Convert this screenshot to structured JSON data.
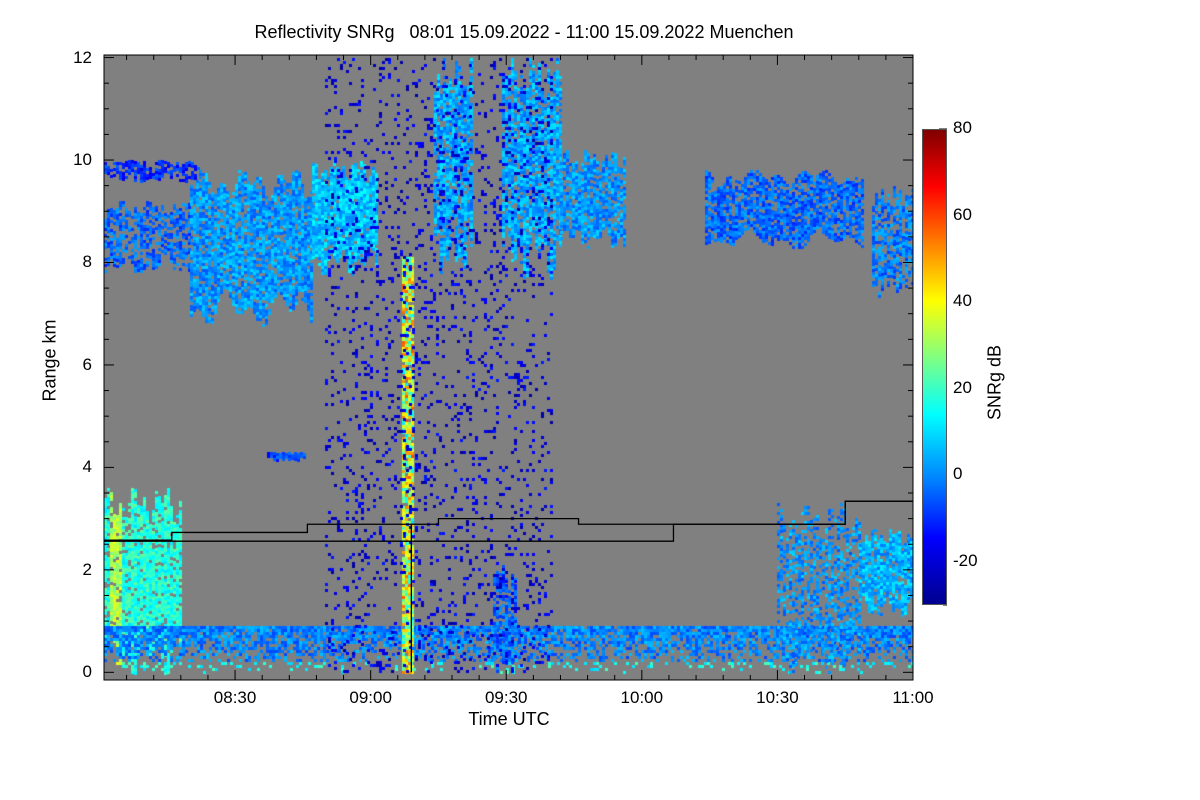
{
  "chart_data": {
    "type": "heatmap",
    "title": "Reflectivity SNRg   08:01 15.09.2022 - 11:00 15.09.2022 Muenchen",
    "xlabel": "Time UTC",
    "ylabel": "Range km",
    "xlim": [
      "08:01",
      "11:00"
    ],
    "ylim": [
      -0.15,
      12.05
    ],
    "x_ticks": [
      "08:30",
      "09:00",
      "09:30",
      "10:00",
      "10:30",
      "11:00"
    ],
    "y_ticks": [
      0,
      2,
      4,
      6,
      8,
      10,
      12
    ],
    "colorbar": {
      "label": "SNRg dB",
      "range": [
        -30,
        80
      ],
      "ticks": [
        80,
        60,
        40,
        20,
        0,
        -20
      ],
      "colormap": "jet"
    },
    "background_color": "#808080",
    "features": [
      {
        "name": "cirrus-west-upper",
        "t": [
          "08:01",
          "08:22"
        ],
        "range_km": [
          9.6,
          10.0
        ],
        "snr_db": -12,
        "coverage": 0.7
      },
      {
        "name": "cirrus-west",
        "t": [
          "08:01",
          "08:20"
        ],
        "range_km": [
          7.8,
          9.2
        ],
        "snr_db": -5,
        "coverage": 0.6
      },
      {
        "name": "cirrus-thick",
        "t": [
          "08:20",
          "08:47"
        ],
        "range_km": [
          6.8,
          9.8
        ],
        "snr_db": 0,
        "coverage": 0.85
      },
      {
        "name": "cirrus-block",
        "t": [
          "08:47",
          "09:01"
        ],
        "range_km": [
          7.8,
          10.0
        ],
        "snr_db": 5,
        "coverage": 0.95
      },
      {
        "name": "fallstreak-1",
        "t": [
          "09:14",
          "09:22"
        ],
        "range_km": [
          7.8,
          12.0
        ],
        "snr_db": 2,
        "coverage": 0.8
      },
      {
        "name": "fallstreak-2",
        "t": [
          "09:29",
          "09:42"
        ],
        "range_km": [
          7.7,
          12.0
        ],
        "snr_db": 2,
        "coverage": 0.8
      },
      {
        "name": "cirrus-mid",
        "t": [
          "09:42",
          "09:56"
        ],
        "range_km": [
          8.3,
          10.2
        ],
        "snr_db": 0,
        "coverage": 0.8
      },
      {
        "name": "cirrus-east",
        "t": [
          "10:14",
          "10:49"
        ],
        "range_km": [
          8.3,
          9.8
        ],
        "snr_db": -5,
        "coverage": 0.8
      },
      {
        "name": "cirrus-far-east",
        "t": [
          "10:51",
          "11:00"
        ],
        "range_km": [
          7.3,
          9.5
        ],
        "snr_db": -3,
        "coverage": 0.7
      },
      {
        "name": "small-blob",
        "t": [
          "08:37",
          "08:45"
        ],
        "range_km": [
          4.15,
          4.3
        ],
        "snr_db": -10,
        "coverage": 0.9
      },
      {
        "name": "boundary-plume",
        "t": [
          "08:01",
          "08:18"
        ],
        "range_km": [
          0.0,
          3.6
        ],
        "snr_db": 15,
        "coverage": 0.85
      },
      {
        "name": "surface-layer",
        "t": [
          "08:01",
          "11:00"
        ],
        "range_km": [
          0.0,
          0.9
        ],
        "snr_db": -2,
        "coverage": 0.75
      },
      {
        "name": "vertical-spike",
        "t": [
          "09:07",
          "09:09"
        ],
        "range_km": [
          0.0,
          8.1
        ],
        "snr_db": 25,
        "coverage": 0.9
      },
      {
        "name": "plume-0930",
        "t": [
          "09:27",
          "09:32"
        ],
        "range_km": [
          0.0,
          2.1
        ],
        "snr_db": -5,
        "coverage": 0.7
      },
      {
        "name": "convective-east",
        "t": [
          "10:30",
          "10:48"
        ],
        "range_km": [
          0.0,
          3.3
        ],
        "snr_db": 0,
        "coverage": 0.5
      },
      {
        "name": "layer-east",
        "t": [
          "10:48",
          "11:00"
        ],
        "range_km": [
          1.1,
          2.8
        ],
        "snr_db": 3,
        "coverage": 0.85
      },
      {
        "name": "speckle",
        "t": [
          "08:50",
          "09:40"
        ],
        "range_km": [
          0.0,
          12.0
        ],
        "snr_db": -20,
        "coverage": 0.12
      }
    ],
    "series": [
      {
        "name": "layer-height-1",
        "color": "#000000",
        "points": [
          [
            "08:01",
            2.58
          ],
          [
            "08:16",
            2.58
          ],
          [
            "08:16",
            2.73
          ],
          [
            "08:46",
            2.73
          ],
          [
            "08:46",
            2.89
          ],
          [
            "09:15",
            2.89
          ],
          [
            "09:15",
            3.0
          ],
          [
            "09:46",
            3.0
          ],
          [
            "09:46",
            2.89
          ],
          [
            "10:45",
            2.89
          ],
          [
            "10:45",
            3.34
          ],
          [
            "11:00",
            3.34
          ]
        ]
      },
      {
        "name": "layer-height-2",
        "color": "#000000",
        "points": [
          [
            "08:01",
            2.56
          ],
          [
            "10:07",
            2.56
          ],
          [
            "10:07",
            2.89
          ],
          [
            "10:45",
            2.89
          ],
          [
            "10:45",
            3.34
          ],
          [
            "11:00",
            3.34
          ]
        ]
      },
      {
        "name": "marker-0909",
        "color": "#000000",
        "points": [
          [
            "09:09",
            0.0
          ],
          [
            "09:09",
            2.9
          ]
        ]
      }
    ]
  }
}
